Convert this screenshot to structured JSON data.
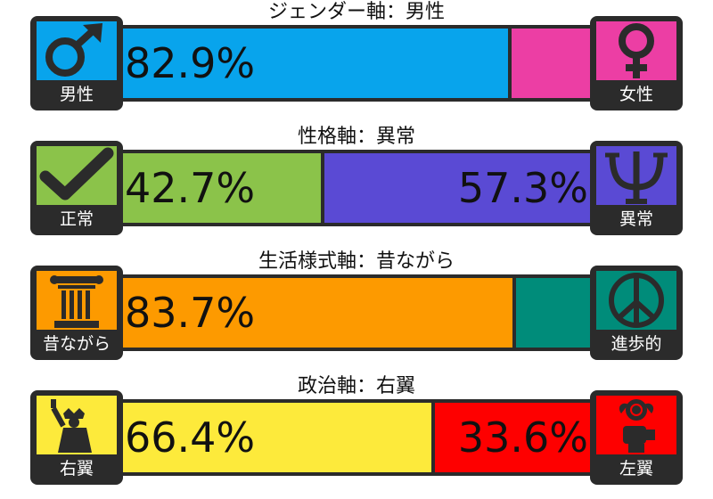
{
  "axes": [
    {
      "title": "ジェンダー軸：男性",
      "left": {
        "label": "男性",
        "icon": "male-symbol-icon",
        "color": "#08a4ec",
        "value": 82.9,
        "pct_text": "82.9%"
      },
      "right": {
        "label": "女性",
        "icon": "female-symbol-icon",
        "color": "#ec3ea4",
        "value": 17.1,
        "pct_text": ""
      }
    },
    {
      "title": "性格軸：異常",
      "left": {
        "label": "正常",
        "icon": "checkmark-icon",
        "color": "#8bc34a",
        "value": 42.7,
        "pct_text": "42.7%"
      },
      "right": {
        "label": "異常",
        "icon": "psi-icon",
        "color": "#5a4ad4",
        "value": 57.3,
        "pct_text": "57.3%"
      }
    },
    {
      "title": "生活様式軸：昔ながら",
      "left": {
        "label": "昔ながら",
        "icon": "column-pillar-icon",
        "color": "#fd9a00",
        "value": 83.7,
        "pct_text": "83.7%"
      },
      "right": {
        "label": "進歩的",
        "icon": "peace-sign-icon",
        "color": "#008c7a",
        "value": 16.3,
        "pct_text": ""
      }
    },
    {
      "title": "政治軸：右翼",
      "left": {
        "label": "右翼",
        "icon": "statue-of-liberty-icon",
        "color": "#fdea3b",
        "value": 66.4,
        "pct_text": "66.4%"
      },
      "right": {
        "label": "左翼",
        "icon": "rose-fist-icon",
        "color": "#fe0000",
        "value": 33.6,
        "pct_text": "33.6%"
      }
    }
  ]
}
